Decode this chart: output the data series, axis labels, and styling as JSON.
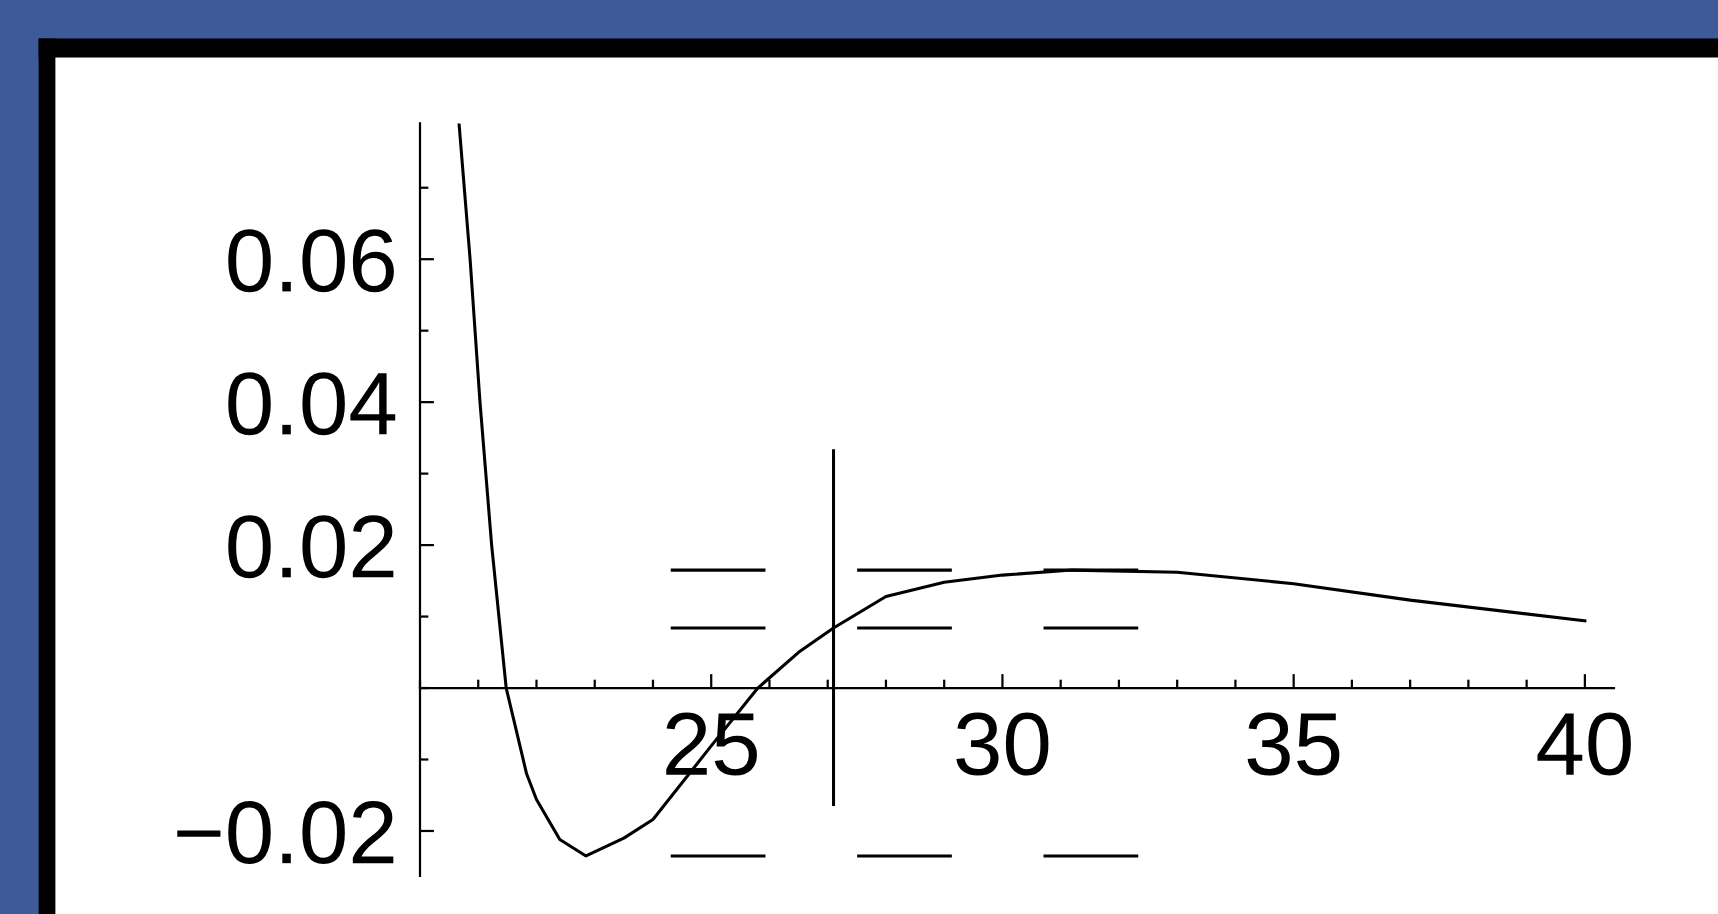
{
  "chart_data": {
    "type": "line",
    "x": [
      20.67,
      20.86,
      21.03,
      21.23,
      21.48,
      21.83,
      22.0,
      22.4,
      22.85,
      23.5,
      24.0,
      25.0,
      25.8,
      26.5,
      27.1,
      28.0,
      29.0,
      30.0,
      31.2,
      33.0,
      35.0,
      37.0,
      40.0
    ],
    "series": [
      {
        "color": "#000000",
        "values": [
          0.079,
          0.06,
          0.04,
          0.02,
          0.0,
          -0.012,
          -0.0156,
          -0.0212,
          -0.0235,
          -0.021,
          -0.0184,
          -0.0081,
          0.0,
          0.005,
          0.0084,
          0.0128,
          0.0148,
          0.0158,
          0.0165,
          0.0162,
          0.0146,
          0.0123,
          0.0094
        ]
      }
    ],
    "xlim": [
      20,
      40.5
    ],
    "ylim": [
      -0.0263,
      0.079
    ],
    "xticks": [
      25,
      30,
      35,
      40
    ],
    "yticks": [
      {
        "value": -0.02,
        "label": "−0.02"
      },
      {
        "value": 0.02,
        "label": "0.02"
      },
      {
        "value": 0.04,
        "label": "0.04"
      },
      {
        "value": 0.06,
        "label": "0.06"
      }
    ],
    "ref_lines": [
      {
        "axis": "y",
        "value": 0.0165,
        "line_style": "dashed"
      },
      {
        "axis": "y",
        "value": 0.0084,
        "line_style": "dashed"
      },
      {
        "axis": "y",
        "value": -0.0235,
        "line_style": "dashed"
      },
      {
        "axis": "x",
        "value": 27.1,
        "line_style": "solid"
      }
    ],
    "grid": false,
    "legend": false,
    "marker": "none",
    "line_style": "solid"
  }
}
